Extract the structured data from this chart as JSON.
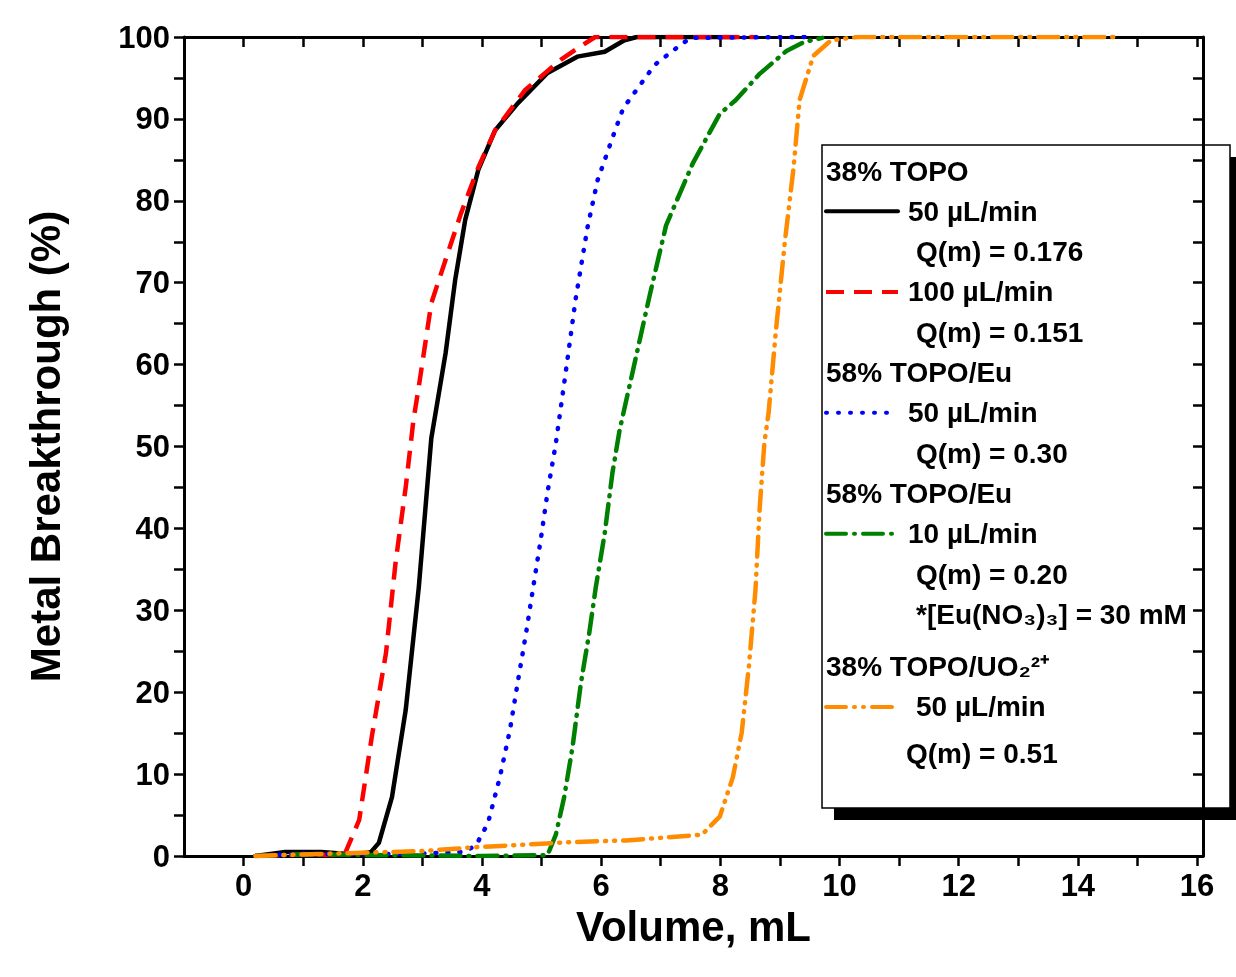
{
  "chart_data": {
    "type": "line",
    "xlabel": "Volume, mL",
    "ylabel": "Metal Breakthrough (%)",
    "xlim": [
      -1,
      16.1
    ],
    "ylim": [
      0,
      100
    ],
    "xticks": [
      0,
      {
        "value": 1,
        "label": null
      },
      2,
      {
        "value": 3,
        "label": null
      },
      4,
      {
        "value": 5,
        "label": null
      },
      6,
      {
        "value": 7,
        "label": null
      },
      8,
      {
        "value": 9,
        "label": null
      },
      10,
      {
        "value": 11,
        "label": null
      },
      12,
      {
        "value": 13,
        "label": null
      },
      14,
      {
        "value": 15,
        "label": null
      },
      16
    ],
    "yticks": [
      0,
      {
        "value": 5,
        "label": null
      },
      10,
      {
        "value": 15,
        "label": null
      },
      20,
      {
        "value": 25,
        "label": null
      },
      30,
      {
        "value": 35,
        "label": null
      },
      40,
      {
        "value": 45,
        "label": null
      },
      50,
      {
        "value": 55,
        "label": null
      },
      60,
      {
        "value": 65,
        "label": null
      },
      70,
      {
        "value": 75,
        "label": null
      },
      80,
      {
        "value": 85,
        "label": null
      },
      90,
      {
        "value": 95,
        "label": null
      },
      100
    ],
    "grid": false,
    "legend": "right",
    "marker": "none",
    "annotations": [
      "38% TOPO",
      "Q(m) = 0.176",
      "Q(m) = 0.151",
      "58% TOPO/Eu",
      "Q(m) = 0.30",
      "58% TOPO/Eu",
      "Q(m) = 0.20",
      "*[Eu(NO₃)₃] = 30 mM",
      "38% TOPO/UO₂²⁺",
      "Q(m) = 0.51"
    ],
    "series": [
      {
        "name": "50 µL/min",
        "color": "#000000",
        "line_style": "solid",
        "x": [
          0.2,
          0.7,
          1.3,
          1.8,
          2.0,
          2.14,
          2.27,
          2.49,
          2.72,
          2.94,
          3.15,
          3.39,
          3.55,
          3.72,
          3.94,
          4.22,
          4.6,
          5.1,
          5.6,
          6.06,
          6.39,
          6.6,
          8.26
        ],
        "values": [
          0,
          0.5,
          0.5,
          0.2,
          0.3,
          0.5,
          1.6,
          7.2,
          17.8,
          32.8,
          51,
          61.4,
          70.3,
          77.7,
          83.8,
          88.6,
          91.9,
          95.6,
          97.6,
          98.2,
          99.6,
          100,
          100
        ]
      },
      {
        "name": "100 µL/min",
        "color": "#ff0000",
        "line_style": "dashed",
        "x": [
          0.3,
          1.0,
          1.69,
          1.94,
          2.15,
          2.39,
          2.55,
          2.72,
          2.85,
          2.94,
          3.15,
          3.39,
          3.65,
          3.94,
          4.22,
          4.72,
          5.32,
          5.56,
          5.9,
          8.6
        ],
        "values": [
          0,
          0.2,
          0.1,
          4.4,
          14.5,
          24.8,
          35.8,
          45,
          53.2,
          57.3,
          67.5,
          72.8,
          78.5,
          84.1,
          88.6,
          93.5,
          97.2,
          98.4,
          100,
          100
        ]
      },
      {
        "name": "50 µL/min",
        "color": "#0000ff",
        "line_style": "dotted",
        "x": [
          0.2,
          1.0,
          2.0,
          3.0,
          3.7,
          3.9,
          4.1,
          4.3,
          4.47,
          4.6,
          4.74,
          4.86,
          4.99,
          5.1,
          5.24,
          5.41,
          5.57,
          5.77,
          5.94,
          6.22,
          6.37,
          6.9,
          7.29,
          7.5,
          9.5
        ],
        "values": [
          0,
          0.3,
          0.2,
          0.3,
          0.5,
          1.3,
          4,
          9.6,
          15.4,
          21.2,
          27.2,
          32.8,
          38.8,
          44.4,
          50.4,
          59.3,
          67.9,
          76.7,
          82.5,
          88.3,
          91.3,
          96.6,
          98.8,
          99.9,
          100
        ]
      },
      {
        "name": "10 µL/min",
        "color": "#008000",
        "line_style": "dashdot",
        "x": [
          0.2,
          1.0,
          2.5,
          4.0,
          5.0,
          5.1,
          5.24,
          5.38,
          5.52,
          5.66,
          5.8,
          5.91,
          6.06,
          6.19,
          6.31,
          6.51,
          6.81,
          7.09,
          7.54,
          7.99,
          8.26,
          8.66,
          9.11,
          9.41,
          9.71
        ],
        "values": [
          0,
          0.2,
          0.1,
          0,
          0.1,
          0.1,
          2.6,
          7.2,
          13.3,
          21.1,
          27.2,
          32.8,
          39.4,
          46.8,
          52,
          58.5,
          68.3,
          77,
          84.6,
          90.6,
          92.3,
          95.5,
          98.3,
          99.4,
          99.9
        ]
      },
      {
        "name": "50 µL/min",
        "color": "#ff8c00",
        "line_style": "dashdotdot",
        "x": [
          0.2,
          1.5,
          3.0,
          3.94,
          4.5,
          5.5,
          6.42,
          7.69,
          7.99,
          8.21,
          8.36,
          8.48,
          8.59,
          8.66,
          8.74,
          8.81,
          8.93,
          9.08,
          9.23,
          9.33,
          9.56,
          9.86,
          10.3,
          14.6
        ],
        "values": [
          0,
          0.3,
          0.6,
          1.1,
          1.3,
          1.7,
          1.9,
          2.6,
          4.8,
          9.6,
          15.1,
          23.2,
          32.5,
          42.4,
          50.5,
          54.1,
          63.9,
          74.8,
          84.1,
          92.3,
          97.7,
          99.6,
          100,
          100
        ]
      }
    ]
  }
}
